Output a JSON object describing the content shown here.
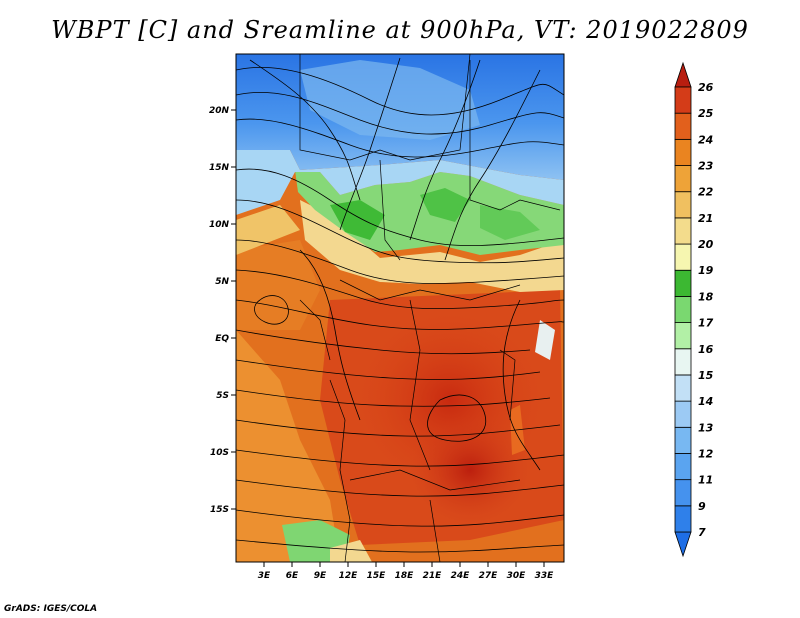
{
  "title": "WBPT [C] and Sreamline at 900hPa, VT: 2019022809",
  "credit": "GrADS: IGES/COLA",
  "axes": {
    "lat_labels": [
      "20N",
      "15N",
      "10N",
      "5N",
      "EQ",
      "5S",
      "10S",
      "15S"
    ],
    "lon_labels": [
      "3E",
      "6E",
      "9E",
      "12E",
      "15E",
      "18E",
      "21E",
      "24E",
      "27E",
      "30E",
      "33E"
    ]
  },
  "colorbar": {
    "labels": [
      "7",
      "9",
      "11",
      "12",
      "13",
      "14",
      "15",
      "16",
      "17",
      "18",
      "19",
      "20",
      "21",
      "22",
      "23",
      "24",
      "25",
      "26"
    ],
    "colors": [
      "#1e6ee6",
      "#2f80ea",
      "#4592ee",
      "#5aa4f0",
      "#78b8f2",
      "#9ccaf4",
      "#c2e0f6",
      "#e8f6f2",
      "#b2f0a6",
      "#7ad870",
      "#3cb832",
      "#f6f6b0",
      "#f3dc8c",
      "#f0c060",
      "#eea338",
      "#ea8420",
      "#e2601c",
      "#d43c18",
      "#b81e10"
    ]
  }
}
